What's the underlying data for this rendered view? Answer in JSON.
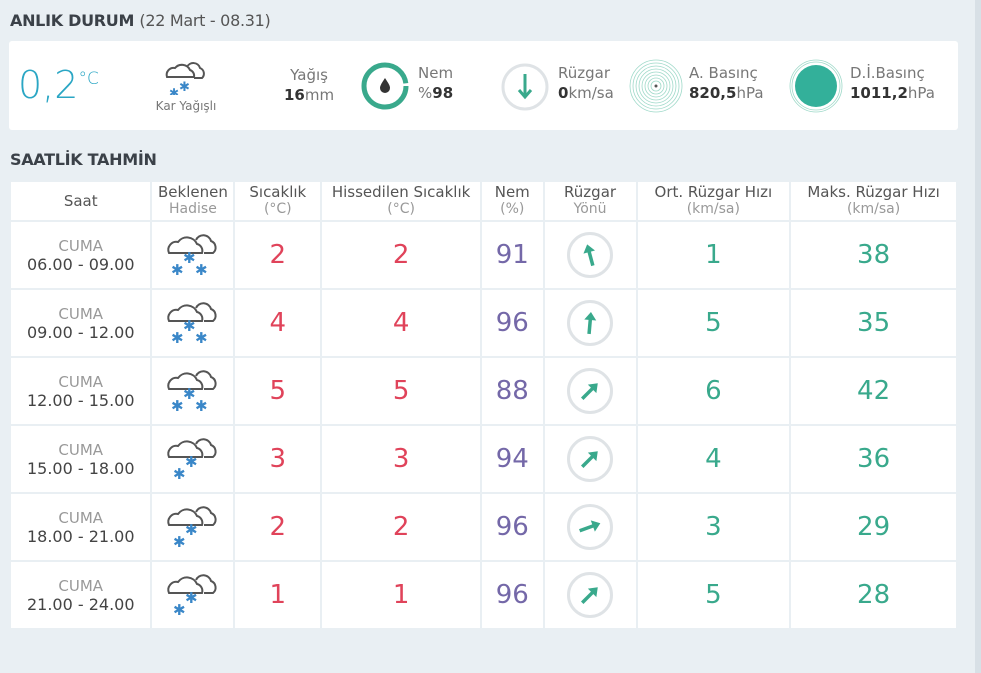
{
  "current": {
    "title": "ANLIK DURUM",
    "date": "(22 Mart - 08.31)",
    "temperature": "0,2",
    "temp_unit": "°C",
    "condition": "Kar Yağışlı",
    "condition_icon": "snow-cloud-icon",
    "precip_label": "Yağış",
    "precip_value": "16",
    "precip_unit": "mm",
    "humidity_label": "Nem",
    "humidity_prefix": "%",
    "humidity_value": "98",
    "wind_label": "Rüzgar",
    "wind_value": "0",
    "wind_unit": "km/sa",
    "pressure_label": "A. Basınç",
    "pressure_value": "820,5",
    "pressure_unit": "hPa",
    "sea_pressure_label": "D.İ.Basınç",
    "sea_pressure_value": "1011,2",
    "sea_pressure_unit": "hPa"
  },
  "hourly": {
    "title": "SAATLİK TAHMİN",
    "headers": [
      {
        "l1": "Saat",
        "l2": ""
      },
      {
        "l1": "Beklenen",
        "l2": "Hadise"
      },
      {
        "l1": "Sıcaklık",
        "l2": "(°C)"
      },
      {
        "l1": "Hissedilen Sıcaklık",
        "l2": "(°C)"
      },
      {
        "l1": "Nem",
        "l2": "(%)"
      },
      {
        "l1": "Rüzgar",
        "l2": "Yönü"
      },
      {
        "l1": "Ort. Rüzgar Hızı",
        "l2": "(km/sa)"
      },
      {
        "l1": "Maks. Rüzgar Hızı",
        "l2": "(km/sa)"
      }
    ],
    "rows": [
      {
        "day": "CUMA",
        "time": "06.00 - 09.00",
        "temp": "2",
        "feels": "2",
        "hum": "91",
        "wind_dir_deg": 345,
        "avg": "1",
        "max": "38",
        "snowflakes": 3
      },
      {
        "day": "CUMA",
        "time": "09.00 - 12.00",
        "temp": "4",
        "feels": "4",
        "hum": "96",
        "wind_dir_deg": 5,
        "avg": "5",
        "max": "35",
        "snowflakes": 3
      },
      {
        "day": "CUMA",
        "time": "12.00 - 15.00",
        "temp": "5",
        "feels": "5",
        "hum": "88",
        "wind_dir_deg": 45,
        "avg": "6",
        "max": "42",
        "snowflakes": 3
      },
      {
        "day": "CUMA",
        "time": "15.00 - 18.00",
        "temp": "3",
        "feels": "3",
        "hum": "94",
        "wind_dir_deg": 45,
        "avg": "4",
        "max": "36",
        "snowflakes": 2
      },
      {
        "day": "CUMA",
        "time": "18.00 - 21.00",
        "temp": "2",
        "feels": "2",
        "hum": "96",
        "wind_dir_deg": 70,
        "avg": "3",
        "max": "29",
        "snowflakes": 2
      },
      {
        "day": "CUMA",
        "time": "21.00 - 24.00",
        "temp": "1",
        "feels": "1",
        "hum": "96",
        "wind_dir_deg": 45,
        "avg": "5",
        "max": "28",
        "snowflakes": 2
      }
    ]
  },
  "colors": {
    "temp": "#e0435a",
    "humidity": "#7468a8",
    "wind": "#39a98c",
    "current_temp": "#2aa6c4"
  }
}
